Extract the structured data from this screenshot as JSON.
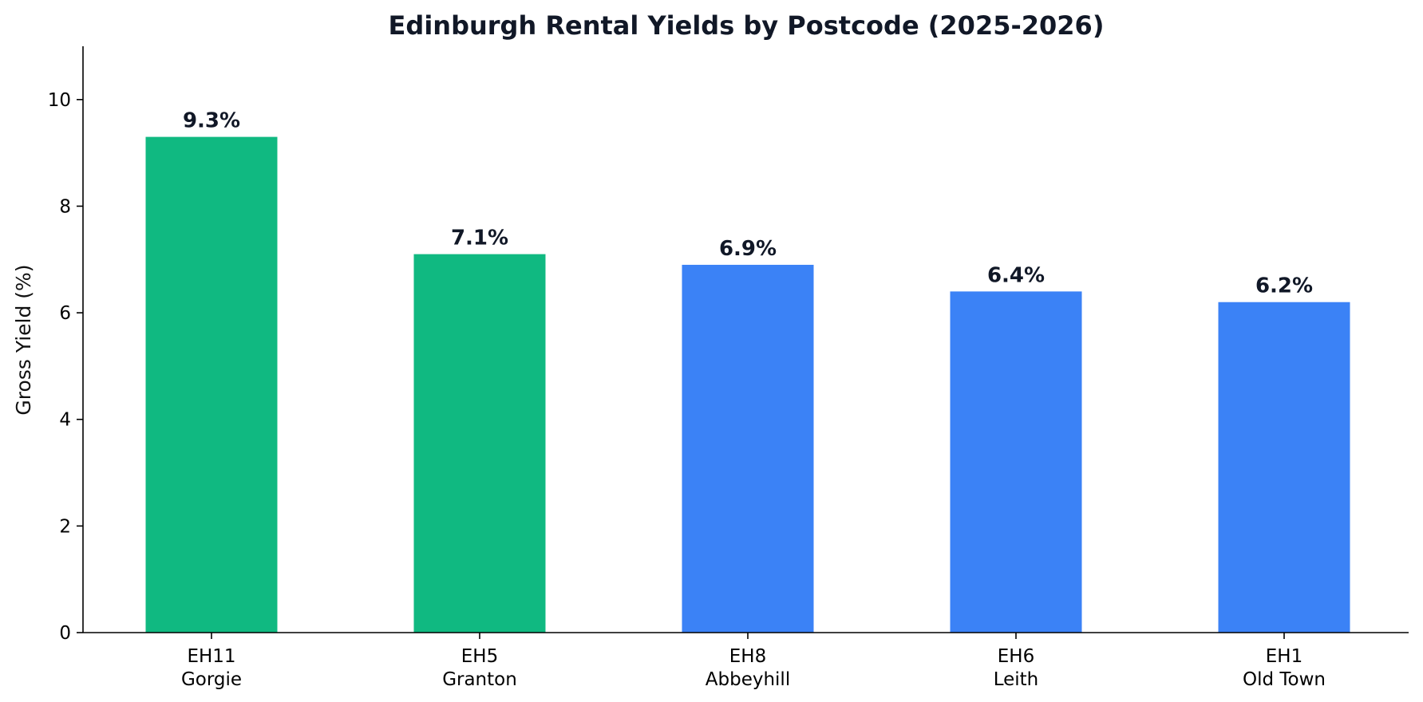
{
  "chart_data": {
    "type": "bar",
    "title": "Edinburgh Rental Yields by Postcode (2025-2026)",
    "xlabel": "",
    "ylabel": "Gross Yield (%)",
    "ylim": [
      0,
      11
    ],
    "yticks": [
      0,
      2,
      4,
      6,
      8,
      10
    ],
    "grid": false,
    "legend": "none",
    "categories": [
      [
        "EH11",
        "Gorgie"
      ],
      [
        "EH5",
        "Granton"
      ],
      [
        "EH8",
        "Abbeyhill"
      ],
      [
        "EH6",
        "Leith"
      ],
      [
        "EH1",
        "Old Town"
      ]
    ],
    "values": [
      9.3,
      7.1,
      6.9,
      6.4,
      6.2
    ],
    "data_labels": [
      "9.3%",
      "7.1%",
      "6.9%",
      "6.4%",
      "6.2%"
    ],
    "bar_colors": [
      "#10b981",
      "#10b981",
      "#3b82f6",
      "#3b82f6",
      "#3b82f6"
    ]
  }
}
